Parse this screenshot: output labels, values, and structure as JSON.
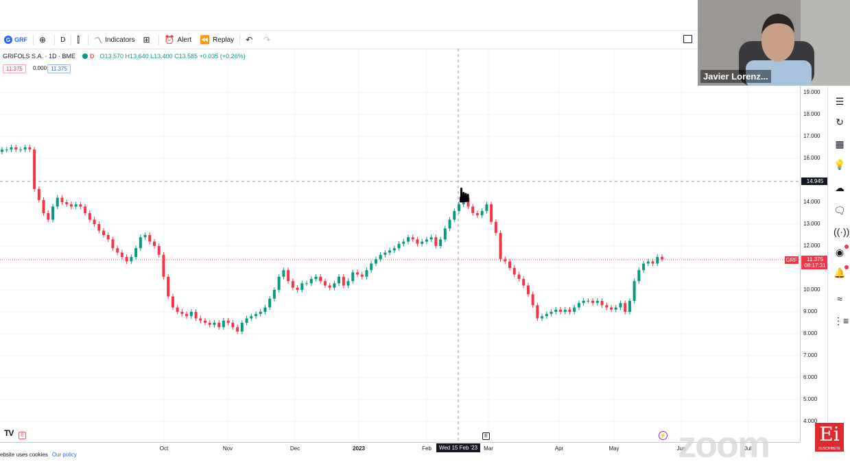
{
  "toolbar": {
    "symbol": "GRF",
    "interval": "D",
    "indicators": "Indicators",
    "alert": "Alert",
    "replay": "Replay"
  },
  "legend": {
    "title": "GRIFOLS S.A. · 1D · BME",
    "badge": "D",
    "ohlc": "O13.570 H13.640 L13.400 C13.585 +0.035 (+0.26%)",
    "bid": "11.375",
    "spread": "0.000",
    "ask": "11.375"
  },
  "crosshair": {
    "price_label": "14.945",
    "date_label": "Wed 15 Feb '23"
  },
  "last_price": {
    "symbol": "GRF",
    "price": "11.375",
    "countdown": "08:17:31"
  },
  "price_axis": [
    "19.000",
    "18.000",
    "17.000",
    "16.000",
    "15.000",
    "14.000",
    "13.000",
    "12.000",
    "11.000",
    "10.000",
    "9.000",
    "8.000",
    "7.000",
    "6.000",
    "5.000",
    "4.000"
  ],
  "time_axis": [
    "Oct",
    "Nov",
    "Dec",
    "2023",
    "Feb",
    "Mar",
    "Apr",
    "May",
    "Jun",
    "Jul"
  ],
  "presenter": {
    "name": "Javier Lorenz..."
  },
  "cookie": {
    "text": "ebsite uses cookies",
    "link": "Our policy"
  },
  "brand": {
    "zoom": "zoom",
    "ei": "Ei",
    "subscribe": "SUSCRIBETE"
  },
  "colors": {
    "up": "#089981",
    "down": "#f23645",
    "accent": "#2962ff"
  },
  "chart_data": {
    "type": "candlestick",
    "symbol": "GRF",
    "interval": "1D",
    "ylim": [
      3.6,
      20.1
    ],
    "y_ticks": [
      19,
      18,
      17,
      16,
      15,
      14,
      13,
      12,
      11,
      10,
      9,
      8,
      7,
      6,
      5,
      4
    ],
    "x_ticks": [
      "Oct",
      "Nov",
      "Dec",
      "2023",
      "Feb",
      "Mar",
      "Apr",
      "May",
      "Jun",
      "Jul"
    ],
    "close_path": [
      16.4,
      16.4,
      16.5,
      16.4,
      16.4,
      16.5,
      16.4,
      14.6,
      14.1,
      13.5,
      13.2,
      13.8,
      14.2,
      14.0,
      13.9,
      13.8,
      13.9,
      13.8,
      13.5,
      13.2,
      13.0,
      12.7,
      12.5,
      12.3,
      11.9,
      11.7,
      11.5,
      11.3,
      11.5,
      11.9,
      12.4,
      12.5,
      12.2,
      12.0,
      11.6,
      10.6,
      9.7,
      9.2,
      9.0,
      8.9,
      8.8,
      9.0,
      8.7,
      8.6,
      8.5,
      8.4,
      8.5,
      8.3,
      8.6,
      8.5,
      8.3,
      8.1,
      8.5,
      8.7,
      8.8,
      8.9,
      9.0,
      9.2,
      9.6,
      10.0,
      10.6,
      10.9,
      10.4,
      10.1,
      10.0,
      10.3,
      10.3,
      10.5,
      10.6,
      10.4,
      10.2,
      10.1,
      10.3,
      10.6,
      10.2,
      10.4,
      10.8,
      10.7,
      10.6,
      10.9,
      11.2,
      11.4,
      11.6,
      11.7,
      11.8,
      11.9,
      12.1,
      12.2,
      12.4,
      12.3,
      12.1,
      12.2,
      12.3,
      12.4,
      12.0,
      12.3,
      12.8,
      13.2,
      13.6,
      13.9,
      14.2,
      13.8,
      13.5,
      13.4,
      13.6,
      13.9,
      13.1,
      12.6,
      11.4,
      11.3,
      11.0,
      10.7,
      10.5,
      10.2,
      9.8,
      9.3,
      8.7,
      8.8,
      8.9,
      9.0,
      9.1,
      9.0,
      9.1,
      9.0,
      9.2,
      9.4,
      9.5,
      9.5,
      9.4,
      9.5,
      9.3,
      9.2,
      9.1,
      9.2,
      9.4,
      9.0,
      9.5,
      10.4,
      10.9,
      11.2,
      11.3,
      11.2,
      11.5,
      11.4
    ]
  }
}
